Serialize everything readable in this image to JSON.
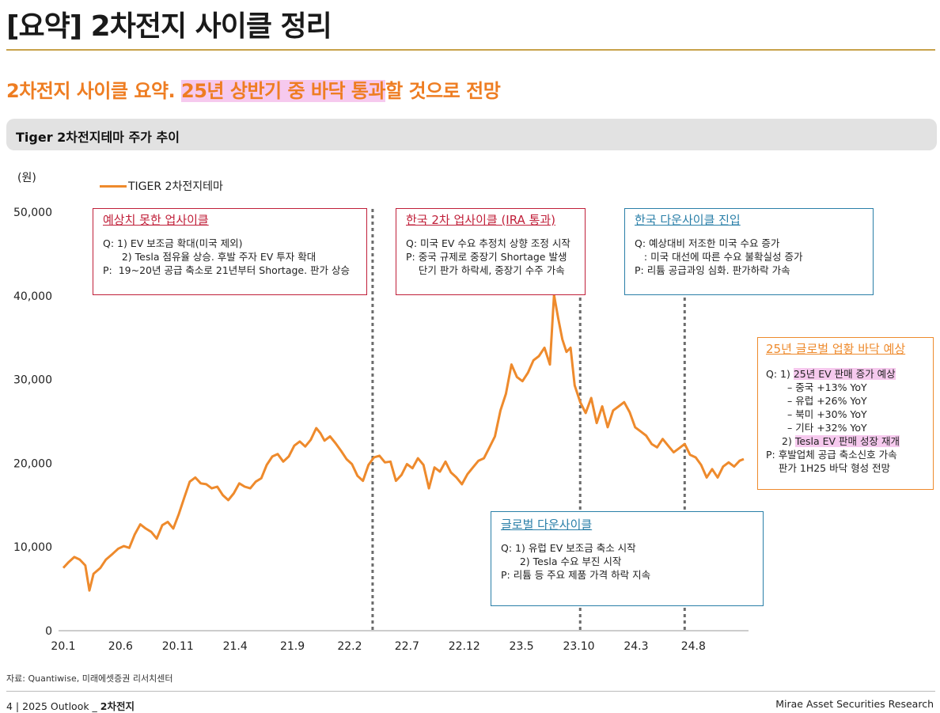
{
  "header": {
    "title": "[요약] 2차전지 사이클 정리",
    "subtitle_pre": "2차전지 사이클 요약. ",
    "subtitle_highlight": "25년 상반기 중 바닥 통과",
    "subtitle_post": "할 것으로 전망"
  },
  "section": {
    "title": "Tiger 2차전지테마 주가 추이"
  },
  "chart_data": {
    "type": "line",
    "unit": "(원)",
    "legend": [
      "TIGER 2차전지테마"
    ],
    "series_color": "#ee8a2c",
    "ylim": [
      0,
      50000
    ],
    "y_ticks": [
      0,
      10000,
      20000,
      30000,
      40000,
      50000
    ],
    "y_tick_labels": [
      "0",
      "10,000",
      "20,000",
      "30,000",
      "40,000",
      "50,000"
    ],
    "x_range": [
      2020.0,
      2024.95
    ],
    "x_ticks": [
      2020.0,
      2020.4167,
      2020.8333,
      2021.25,
      2021.6667,
      2022.0833,
      2022.5,
      2022.9167,
      2023.3333,
      2023.75,
      2024.1667,
      2024.5833
    ],
    "x_tick_labels": [
      "20.1",
      "20.6",
      "20.11",
      "21.4",
      "21.9",
      "22.2",
      "22.7",
      "22.12",
      "23.5",
      "23.10",
      "24.3",
      "24.8"
    ],
    "cycle_dividers": [
      2022.25,
      2023.76,
      2024.52
    ],
    "series": [
      {
        "name": "TIGER 2차전지테마",
        "points": [
          [
            2020.0,
            7500
          ],
          [
            2020.04,
            8200
          ],
          [
            2020.08,
            8800
          ],
          [
            2020.12,
            8500
          ],
          [
            2020.16,
            7800
          ],
          [
            2020.19,
            4800
          ],
          [
            2020.22,
            6800
          ],
          [
            2020.27,
            7500
          ],
          [
            2020.31,
            8500
          ],
          [
            2020.36,
            9200
          ],
          [
            2020.4,
            9800
          ],
          [
            2020.44,
            10100
          ],
          [
            2020.48,
            9900
          ],
          [
            2020.52,
            11500
          ],
          [
            2020.56,
            12700
          ],
          [
            2020.6,
            12200
          ],
          [
            2020.64,
            11800
          ],
          [
            2020.68,
            11000
          ],
          [
            2020.72,
            12600
          ],
          [
            2020.76,
            13000
          ],
          [
            2020.8,
            12200
          ],
          [
            2020.84,
            13900
          ],
          [
            2020.88,
            15900
          ],
          [
            2020.92,
            17800
          ],
          [
            2020.96,
            18300
          ],
          [
            2021.0,
            17600
          ],
          [
            2021.04,
            17500
          ],
          [
            2021.08,
            17000
          ],
          [
            2021.12,
            17200
          ],
          [
            2021.16,
            16200
          ],
          [
            2021.2,
            15600
          ],
          [
            2021.24,
            16400
          ],
          [
            2021.28,
            17600
          ],
          [
            2021.32,
            17200
          ],
          [
            2021.36,
            17000
          ],
          [
            2021.4,
            17800
          ],
          [
            2021.44,
            18200
          ],
          [
            2021.48,
            19800
          ],
          [
            2021.52,
            20800
          ],
          [
            2021.56,
            21100
          ],
          [
            2021.6,
            20200
          ],
          [
            2021.64,
            20800
          ],
          [
            2021.68,
            22100
          ],
          [
            2021.72,
            22600
          ],
          [
            2021.76,
            22000
          ],
          [
            2021.8,
            22800
          ],
          [
            2021.84,
            24200
          ],
          [
            2021.87,
            23600
          ],
          [
            2021.9,
            22700
          ],
          [
            2021.94,
            23200
          ],
          [
            2021.98,
            22400
          ],
          [
            2022.02,
            21500
          ],
          [
            2022.06,
            20500
          ],
          [
            2022.1,
            19900
          ],
          [
            2022.14,
            18500
          ],
          [
            2022.18,
            17900
          ],
          [
            2022.22,
            19800
          ],
          [
            2022.26,
            20700
          ],
          [
            2022.3,
            20900
          ],
          [
            2022.34,
            20100
          ],
          [
            2022.38,
            20200
          ],
          [
            2022.42,
            17900
          ],
          [
            2022.46,
            18600
          ],
          [
            2022.5,
            19900
          ],
          [
            2022.54,
            19400
          ],
          [
            2022.58,
            20600
          ],
          [
            2022.62,
            19800
          ],
          [
            2022.66,
            17000
          ],
          [
            2022.7,
            19500
          ],
          [
            2022.74,
            19000
          ],
          [
            2022.78,
            20200
          ],
          [
            2022.82,
            18900
          ],
          [
            2022.86,
            18300
          ],
          [
            2022.9,
            17500
          ],
          [
            2022.94,
            18700
          ],
          [
            2022.98,
            19500
          ],
          [
            2023.02,
            20300
          ],
          [
            2023.06,
            20600
          ],
          [
            2023.1,
            21900
          ],
          [
            2023.14,
            23200
          ],
          [
            2023.18,
            26300
          ],
          [
            2023.22,
            28300
          ],
          [
            2023.26,
            31800
          ],
          [
            2023.3,
            30300
          ],
          [
            2023.34,
            29800
          ],
          [
            2023.38,
            30800
          ],
          [
            2023.42,
            32300
          ],
          [
            2023.46,
            32800
          ],
          [
            2023.5,
            33800
          ],
          [
            2023.54,
            31800
          ],
          [
            2023.57,
            40100
          ],
          [
            2023.6,
            37300
          ],
          [
            2023.63,
            34800
          ],
          [
            2023.66,
            33300
          ],
          [
            2023.69,
            33800
          ],
          [
            2023.72,
            29300
          ],
          [
            2023.76,
            27300
          ],
          [
            2023.8,
            26000
          ],
          [
            2023.84,
            27800
          ],
          [
            2023.88,
            24800
          ],
          [
            2023.92,
            26800
          ],
          [
            2023.96,
            24300
          ],
          [
            2024.0,
            26300
          ],
          [
            2024.04,
            26800
          ],
          [
            2024.08,
            27300
          ],
          [
            2024.12,
            26100
          ],
          [
            2024.16,
            24300
          ],
          [
            2024.2,
            23800
          ],
          [
            2024.24,
            23300
          ],
          [
            2024.28,
            22300
          ],
          [
            2024.32,
            21900
          ],
          [
            2024.36,
            22900
          ],
          [
            2024.4,
            22100
          ],
          [
            2024.44,
            21300
          ],
          [
            2024.48,
            21800
          ],
          [
            2024.52,
            22300
          ],
          [
            2024.56,
            21000
          ],
          [
            2024.6,
            20700
          ],
          [
            2024.64,
            19800
          ],
          [
            2024.68,
            18300
          ],
          [
            2024.72,
            19300
          ],
          [
            2024.76,
            18300
          ],
          [
            2024.8,
            19600
          ],
          [
            2024.84,
            20100
          ],
          [
            2024.88,
            19600
          ],
          [
            2024.92,
            20300
          ],
          [
            2024.95,
            20500
          ]
        ]
      }
    ]
  },
  "boxes": {
    "box1": {
      "title": "예상치 못한 업사이클",
      "lines": [
        "Q: 1) EV 보조금 확대(미국 제외)",
        "      2) Tesla 점유율 상승. 후발 주자 EV 투자 확대",
        "P:  19~20년 공급 축소로 21년부터 Shortage. 판가 상승"
      ]
    },
    "box2": {
      "title": "한국 2차 업사이클 (IRA 통과)",
      "lines": [
        "Q: 미국 EV 수요 추정치 상향 조정 시작",
        "P: 중국 규제로 중장기 Shortage 발생",
        "    단기 판가 하락세, 중장기 수주 가속"
      ]
    },
    "box3": {
      "title": "한국 다운사이클 진입",
      "lines": [
        "Q: 예상대비 저조한 미국 수요 증가",
        "   : 미국 대선에 따른 수요 불확실성 증가",
        "P: 리튬 공급과잉 심화. 판가하락 가속"
      ]
    },
    "box4": {
      "title": "글로벌 다운사이클",
      "lines": [
        "Q: 1) 유럽 EV 보조금 축소 시작",
        "      2) Tesla 수요 부진 시작",
        "P: 리튬 등 주요 제품 가격 하락 지속"
      ]
    },
    "box5": {
      "title": "25년 글로벌 업황 바닥 예상",
      "q1_prefix": "Q: 1) ",
      "q1_highlight": "25년 EV 판매 증가 예상",
      "sub_lines": [
        "– 중국 +13% YoY",
        "– 유럽 +26% YoY",
        "– 북미 +30% YoY",
        "– 기타 +32% YoY"
      ],
      "q2_prefix": "2) ",
      "q2_highlight": "Tesla EV 판매 성장 재개",
      "p_lines": [
        "P: 후발업체 공급 축소신호 가속",
        "    판가 1H25 바닥 형성 전망"
      ]
    }
  },
  "source": "자료: Quantiwise, 미래에셋증권 리서치센터",
  "footer": {
    "page": "4",
    "sep": " | ",
    "report": "2025 Outlook _ ",
    "topic": "2차전지",
    "brand": "Mirae Asset Securities Research"
  },
  "colors": {
    "accent_orange": "#ee7d22",
    "line_orange": "#ee8a2c",
    "red": "#c0203a",
    "blue": "#2a7fa8",
    "highlight_pink": "#f6c9ee",
    "rule_gold": "#c8a24a"
  }
}
